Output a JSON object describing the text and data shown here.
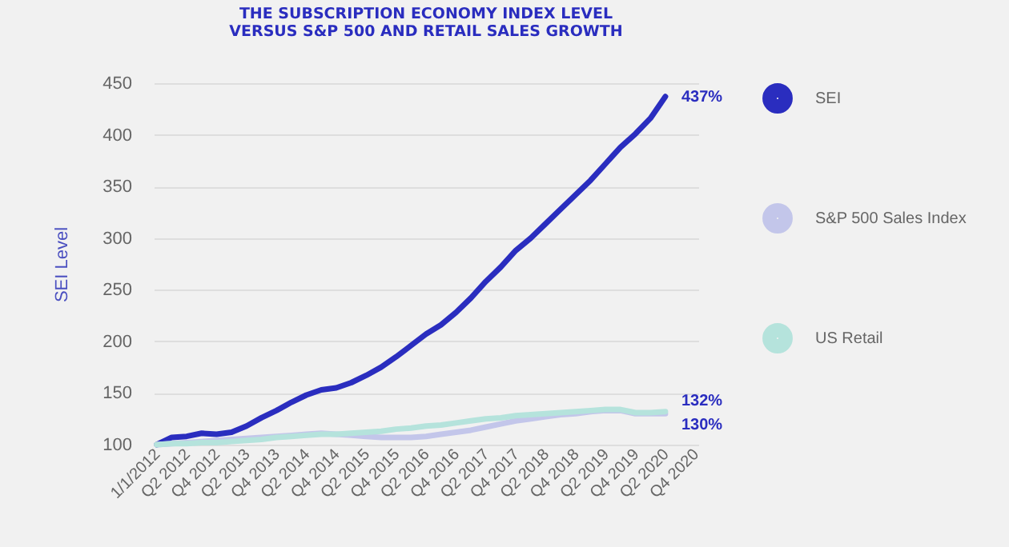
{
  "chart_data": {
    "type": "line",
    "title": "THE SUBSCRIPTION ECONOMY INDEX LEVEL\nVERSUS S&P 500 AND RETAIL SALES GROWTH",
    "ylabel": "SEI Level",
    "categories": [
      "1/1/2012",
      null,
      "Q2 2012",
      null,
      "Q4 2012",
      null,
      "Q2 2013",
      null,
      "Q4 2013",
      null,
      "Q2 2014",
      null,
      "Q4 2014",
      null,
      "Q2 2015",
      null,
      "Q4 2015",
      null,
      "Q2 2016",
      null,
      "Q4 2016",
      null,
      "Q2 2017",
      null,
      "Q4 2017",
      null,
      "Q2 2018",
      null,
      "Q4 2018",
      null,
      "Q2 2019",
      null,
      "Q4 2019",
      null,
      "Q2 2020",
      null,
      "Q4 2020"
    ],
    "series": [
      {
        "name": "SEI",
        "color": "#2a2dbf",
        "values": [
          100,
          107,
          108,
          111,
          110,
          112,
          118,
          126,
          133,
          141,
          148,
          153,
          155,
          160,
          167,
          175,
          185,
          196,
          207,
          216,
          228,
          242,
          258,
          272,
          288,
          300,
          314,
          328,
          342,
          356,
          372,
          388,
          401,
          416,
          437,
          null,
          null
        ]
      },
      {
        "name": "S&P 500 Sales Index",
        "color": "#c3c6ea",
        "values": [
          100,
          101,
          102,
          103,
          104,
          105,
          106,
          107,
          108,
          109,
          110,
          111,
          110,
          109,
          108,
          107,
          107,
          107,
          108,
          110,
          112,
          114,
          117,
          120,
          123,
          125,
          127,
          129,
          130,
          132,
          133,
          133,
          130,
          130,
          130,
          null,
          null
        ]
      },
      {
        "name": "US Retail",
        "color": "#b5e3dc",
        "values": [
          100,
          101,
          101,
          102,
          102,
          103,
          104,
          105,
          107,
          108,
          109,
          110,
          110,
          111,
          112,
          113,
          115,
          116,
          118,
          119,
          121,
          123,
          125,
          126,
          128,
          129,
          130,
          131,
          132,
          133,
          134,
          134,
          131,
          131,
          132,
          null,
          null
        ]
      }
    ],
    "ylim": [
      100,
      450
    ],
    "yticks": [
      100,
      150,
      200,
      250,
      300,
      350,
      400,
      450
    ],
    "grid": "y",
    "legend": "right",
    "annotations": [
      {
        "text": "437%",
        "x": "Q2 2020",
        "y": 437
      },
      {
        "text": "132%",
        "x": "Q2 2020",
        "y": 132
      },
      {
        "text": "130%",
        "x": "Q2 2020",
        "y": 130
      }
    ]
  }
}
